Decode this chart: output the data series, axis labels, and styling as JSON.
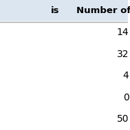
{
  "header": [
    "is",
    "Number of"
  ],
  "rows": [
    [
      "",
      "14"
    ],
    [
      "",
      "32"
    ],
    [
      "",
      "4"
    ],
    [
      "",
      "0"
    ],
    [
      "",
      "50"
    ]
  ],
  "header_bg": "#dce6f1",
  "row_bg": "#ffffff",
  "header_fontsize": 9.5,
  "row_fontsize": 10,
  "header_font_weight": "bold",
  "col2_font_weight": "normal",
  "figsize": [
    1.89,
    1.89
  ],
  "dpi": 100,
  "line_color": "#aaaaaa",
  "text_color": "#000000"
}
